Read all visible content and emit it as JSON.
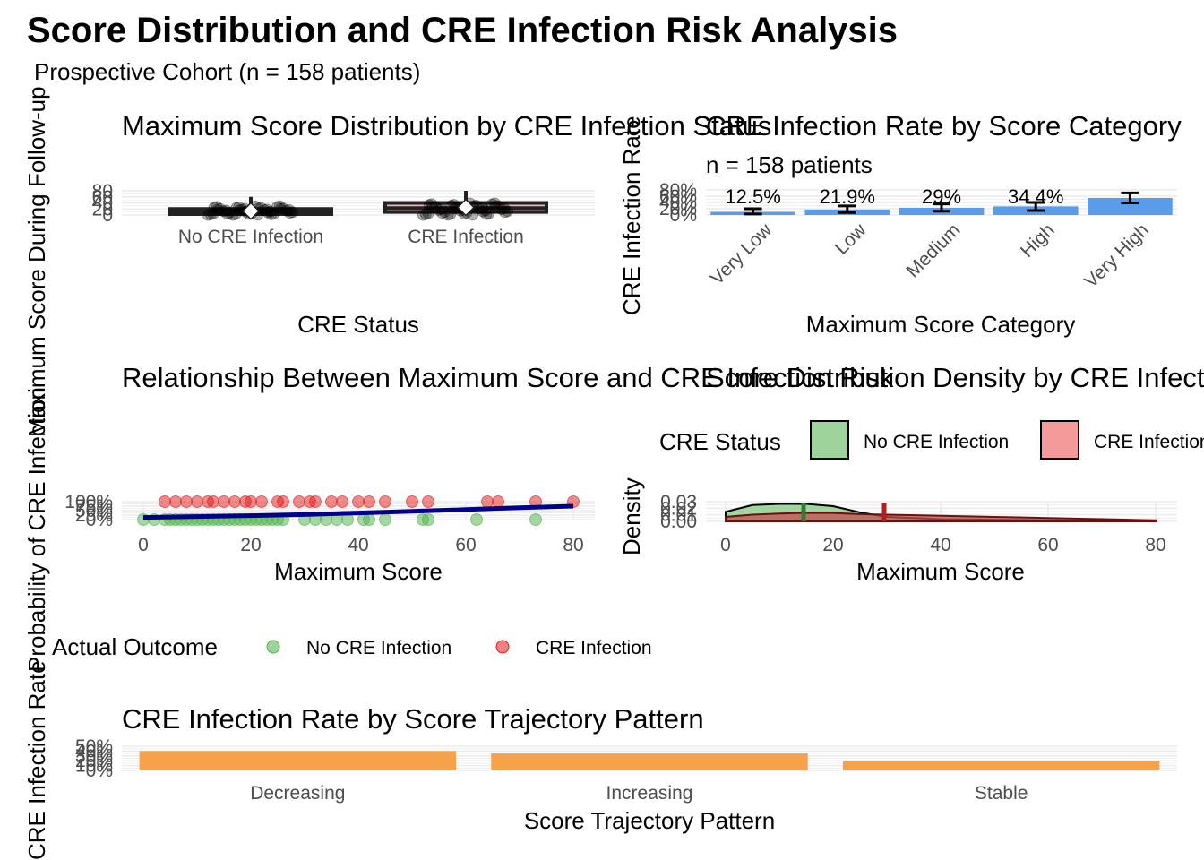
{
  "title": "Score Distribution and CRE Infection Risk Analysis",
  "subtitle": "Prospective Cohort (n = 158 patients)",
  "colors": {
    "no_cre": "#4daf4a",
    "cre": "#e41a1c",
    "bar_blue": "#5a9bea",
    "bar_orange": "#f5a24b",
    "trend": "#00008b",
    "grid": "#ebebeb"
  },
  "panels": {
    "boxplot": {
      "title": "Maximum Score Distribution by CRE Infection Status",
      "xlabel": "CRE Status",
      "ylabel": "Maximum Score During Follow-up",
      "y_ticks": [
        "0",
        "20",
        "40",
        "60",
        "80"
      ]
    },
    "rate_by_category": {
      "title": "CRE Infection Rate by Score Category",
      "subtitle": "n = 158 patients",
      "xlabel": "Maximum Score Category",
      "ylabel": "CRE Infection Rate",
      "y_ticks": [
        "0%",
        "20%",
        "40%",
        "60%",
        "80%"
      ]
    },
    "scatter": {
      "title": "Relationship Between Maximum Score and CRE Infection Risk",
      "xlabel": "Maximum Score",
      "ylabel": "Probability of CRE Infection",
      "y_ticks": [
        "0%",
        "25%",
        "50%",
        "75%",
        "100%"
      ],
      "x_ticks": [
        "0",
        "20",
        "40",
        "60",
        "80"
      ],
      "legend_title": "Actual Outcome",
      "legend_items": [
        "No CRE Infection",
        "CRE Infection"
      ]
    },
    "density": {
      "title": "Score Distribution Density by CRE Infection Status",
      "xlabel": "Maximum Score",
      "ylabel": "Density",
      "y_ticks": [
        "0.00",
        "0.01",
        "0.02",
        "0.03"
      ],
      "x_ticks": [
        "0",
        "20",
        "40",
        "60",
        "80"
      ],
      "legend_title": "CRE Status",
      "legend_items": [
        "No CRE Infection",
        "CRE Infection"
      ]
    },
    "trajectory": {
      "title": "CRE Infection Rate by Score Trajectory Pattern",
      "xlabel": "Score Trajectory Pattern",
      "ylabel": "CRE Infection Rate",
      "y_ticks": [
        "0%",
        "10%",
        "20%",
        "30%",
        "40%",
        "50%"
      ]
    }
  },
  "chart_data": [
    {
      "type": "box",
      "categories": [
        "No CRE Infection",
        "CRE Infection"
      ],
      "series": [
        {
          "name": "No CRE Infection",
          "median": 10,
          "mean": 13,
          "q1": 3,
          "q3": 20,
          "min": 0,
          "max": 60
        },
        {
          "name": "CRE Infection",
          "median": 23,
          "mean": 25,
          "q1": 10,
          "q3": 40,
          "min": 0,
          "max": 80
        }
      ],
      "ylim": [
        0,
        80
      ]
    },
    {
      "type": "bar",
      "categories": [
        "Very Low",
        "Low",
        "Medium",
        "High",
        "Very High"
      ],
      "values": [
        12.5,
        21.9,
        29,
        34.4,
        68
      ],
      "error_low": [
        4,
        10,
        15,
        18,
        48
      ],
      "error_high": [
        25,
        36,
        44,
        50,
        88
      ],
      "data_labels": [
        "12.5%",
        "21.9%",
        "29%",
        "34.4%",
        ""
      ],
      "ylim": [
        0,
        100
      ]
    },
    {
      "type": "scatter",
      "x_range": [
        0,
        80
      ],
      "ylim": [
        0,
        100
      ],
      "series": [
        {
          "name": "No CRE Infection",
          "y": 0,
          "x": [
            0,
            2,
            4,
            5,
            6,
            7,
            8,
            9,
            10,
            11,
            12,
            13,
            14,
            15,
            16,
            17,
            18,
            19,
            20,
            21,
            22,
            23,
            24,
            25,
            26,
            30,
            32,
            34,
            36,
            38,
            41,
            42,
            45,
            52,
            53,
            62,
            73
          ]
        },
        {
          "name": "CRE Infection",
          "y": 100,
          "x": [
            4,
            6,
            8,
            10,
            12,
            13,
            15,
            17,
            19,
            20,
            22,
            25,
            26,
            29,
            31,
            32,
            35,
            37,
            40,
            42,
            45,
            50,
            53,
            64,
            66,
            73,
            80
          ]
        }
      ],
      "trend": {
        "x": [
          0,
          10,
          20,
          30,
          40,
          50,
          60,
          70,
          80
        ],
        "y": [
          12,
          17,
          22,
          28,
          37,
          46,
          56,
          66,
          75
        ]
      }
    },
    {
      "type": "area",
      "x_range": [
        0,
        80
      ],
      "ylim": [
        0,
        0.035
      ],
      "series": [
        {
          "name": "No CRE Infection",
          "x": [
            0,
            5,
            10,
            15,
            20,
            25,
            30,
            40,
            50,
            60,
            70,
            80
          ],
          "y": [
            0.017,
            0.029,
            0.031,
            0.031,
            0.027,
            0.016,
            0.008,
            0.004,
            0.003,
            0.002,
            0.001,
            0.0005
          ],
          "mean": 14.5
        },
        {
          "name": "CRE Infection",
          "x": [
            0,
            5,
            10,
            15,
            20,
            25,
            30,
            40,
            50,
            60,
            70,
            80
          ],
          "y": [
            0.008,
            0.012,
            0.014,
            0.015,
            0.015,
            0.013,
            0.012,
            0.01,
            0.008,
            0.006,
            0.004,
            0.002
          ],
          "mean": 29.5
        }
      ]
    },
    {
      "type": "bar",
      "categories": [
        "Decreasing",
        "Increasing",
        "Stable"
      ],
      "values": [
        40,
        35,
        20
      ],
      "ylim": [
        0,
        50
      ]
    }
  ]
}
